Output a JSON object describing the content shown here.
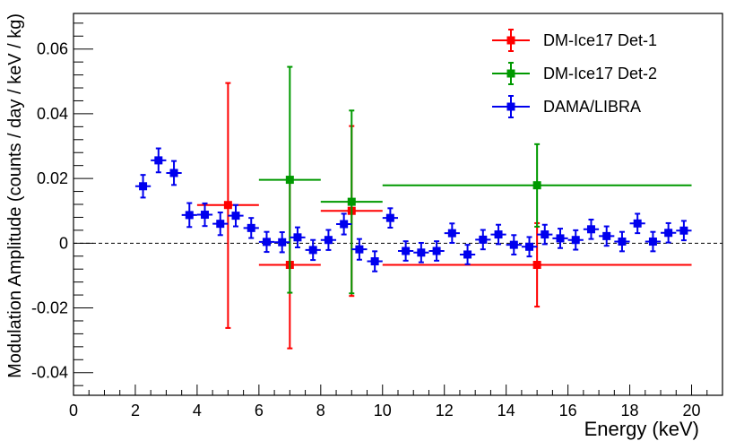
{
  "chart_data": {
    "type": "scatter",
    "xlabel": "Energy (keV)",
    "ylabel": "Modulation Amplitude (counts / day / keV / kg)",
    "xlim": [
      0,
      21
    ],
    "ylim": [
      -0.047,
      0.071
    ],
    "xticks": [
      0,
      2,
      4,
      6,
      8,
      10,
      12,
      14,
      16,
      18,
      20
    ],
    "yticks": [
      -0.04,
      -0.02,
      0,
      0.02,
      0.04,
      0.06
    ],
    "xtick_labels": [
      "0",
      "2",
      "4",
      "6",
      "8",
      "10",
      "12",
      "14",
      "16",
      "18",
      "20"
    ],
    "ytick_labels": [
      "-0.04",
      "-0.02",
      "0",
      "0.02",
      "0.04",
      "0.06"
    ],
    "reference_line": {
      "y": 0,
      "style": "dashed"
    },
    "legend_position": "top-right",
    "series": [
      {
        "name": "DM-Ice17 Det-1",
        "color": "#ff0000",
        "points": [
          {
            "x": 5.0,
            "y": 0.0118,
            "xlo": 4.0,
            "xhi": 6.0,
            "ylo": -0.0262,
            "yhi": 0.0495
          },
          {
            "x": 7.0,
            "y": -0.0067,
            "xlo": 6.0,
            "xhi": 8.0,
            "ylo": -0.0325,
            "yhi": 0.0191
          },
          {
            "x": 9.0,
            "y": 0.01,
            "xlo": 8.0,
            "xhi": 10.0,
            "ylo": -0.0163,
            "yhi": 0.0362
          },
          {
            "x": 15.0,
            "y": -0.0067,
            "xlo": 10.0,
            "xhi": 20.0,
            "ylo": -0.0196,
            "yhi": 0.0062
          }
        ]
      },
      {
        "name": "DM-Ice17 Det-2",
        "color": "#009900",
        "points": [
          {
            "x": 7.0,
            "y": 0.0196,
            "xlo": 6.0,
            "xhi": 8.0,
            "ylo": -0.0153,
            "yhi": 0.0545
          },
          {
            "x": 9.0,
            "y": 0.0128,
            "xlo": 8.0,
            "xhi": 10.0,
            "ylo": -0.0155,
            "yhi": 0.041
          },
          {
            "x": 15.0,
            "y": 0.0179,
            "xlo": 10.0,
            "xhi": 20.0,
            "ylo": 0.0051,
            "yhi": 0.0306
          }
        ]
      },
      {
        "name": "DAMA/LIBRA",
        "color": "#0000ee",
        "points": [
          {
            "x": 2.25,
            "y": 0.0176,
            "xlo": 2.0,
            "xhi": 2.5,
            "ylo": 0.0141,
            "yhi": 0.0211
          },
          {
            "x": 2.75,
            "y": 0.0256,
            "xlo": 2.5,
            "xhi": 3.0,
            "ylo": 0.0219,
            "yhi": 0.0293
          },
          {
            "x": 3.25,
            "y": 0.0217,
            "xlo": 3.0,
            "xhi": 3.5,
            "ylo": 0.018,
            "yhi": 0.0254
          },
          {
            "x": 3.75,
            "y": 0.0087,
            "xlo": 3.5,
            "xhi": 4.0,
            "ylo": 0.005,
            "yhi": 0.0124
          },
          {
            "x": 4.25,
            "y": 0.0088,
            "xlo": 4.0,
            "xhi": 4.5,
            "ylo": 0.0053,
            "yhi": 0.0123
          },
          {
            "x": 4.75,
            "y": 0.006,
            "xlo": 4.5,
            "xhi": 5.0,
            "ylo": 0.0025,
            "yhi": 0.0095
          },
          {
            "x": 5.25,
            "y": 0.0085,
            "xlo": 5.0,
            "xhi": 5.5,
            "ylo": 0.0052,
            "yhi": 0.0118
          },
          {
            "x": 5.75,
            "y": 0.0047,
            "xlo": 5.5,
            "xhi": 6.0,
            "ylo": 0.0016,
            "yhi": 0.0078
          },
          {
            "x": 6.25,
            "y": 0.0004,
            "xlo": 6.0,
            "xhi": 6.5,
            "ylo": -0.0027,
            "yhi": 0.0035
          },
          {
            "x": 6.75,
            "y": 0.0003,
            "xlo": 6.5,
            "xhi": 7.0,
            "ylo": -0.0028,
            "yhi": 0.0034
          },
          {
            "x": 7.25,
            "y": 0.0018,
            "xlo": 7.0,
            "xhi": 7.5,
            "ylo": -0.0013,
            "yhi": 0.0049
          },
          {
            "x": 7.75,
            "y": -0.0021,
            "xlo": 7.5,
            "xhi": 8.0,
            "ylo": -0.0052,
            "yhi": 0.001
          },
          {
            "x": 8.25,
            "y": 0.001,
            "xlo": 8.0,
            "xhi": 8.5,
            "ylo": -0.0021,
            "yhi": 0.0041
          },
          {
            "x": 8.75,
            "y": 0.0059,
            "xlo": 8.5,
            "xhi": 9.0,
            "ylo": 0.0027,
            "yhi": 0.0091
          },
          {
            "x": 9.25,
            "y": -0.0019,
            "xlo": 9.0,
            "xhi": 9.5,
            "ylo": -0.0051,
            "yhi": 0.0013
          },
          {
            "x": 9.75,
            "y": -0.0056,
            "xlo": 9.5,
            "xhi": 10.0,
            "ylo": -0.0087,
            "yhi": -0.0025
          },
          {
            "x": 10.25,
            "y": 0.0078,
            "xlo": 10.0,
            "xhi": 10.5,
            "ylo": 0.0048,
            "yhi": 0.0108
          },
          {
            "x": 10.75,
            "y": -0.0024,
            "xlo": 10.5,
            "xhi": 11.0,
            "ylo": -0.0054,
            "yhi": 0.0006
          },
          {
            "x": 11.25,
            "y": -0.0029,
            "xlo": 11.0,
            "xhi": 11.5,
            "ylo": -0.0059,
            "yhi": 0.0001
          },
          {
            "x": 11.75,
            "y": -0.0024,
            "xlo": 11.5,
            "xhi": 12.0,
            "ylo": -0.0054,
            "yhi": 0.0006
          },
          {
            "x": 12.25,
            "y": 0.0031,
            "xlo": 12.0,
            "xhi": 12.5,
            "ylo": 0.0001,
            "yhi": 0.0061
          },
          {
            "x": 12.75,
            "y": -0.0035,
            "xlo": 12.5,
            "xhi": 13.0,
            "ylo": -0.0065,
            "yhi": -0.0005
          },
          {
            "x": 13.25,
            "y": 0.0011,
            "xlo": 13.0,
            "xhi": 13.5,
            "ylo": -0.0019,
            "yhi": 0.0041
          },
          {
            "x": 13.75,
            "y": 0.0027,
            "xlo": 13.5,
            "xhi": 14.0,
            "ylo": -0.0003,
            "yhi": 0.0057
          },
          {
            "x": 14.25,
            "y": -0.0005,
            "xlo": 14.0,
            "xhi": 14.5,
            "ylo": -0.0035,
            "yhi": 0.0025
          },
          {
            "x": 14.75,
            "y": -0.0011,
            "xlo": 14.5,
            "xhi": 15.0,
            "ylo": -0.0041,
            "yhi": 0.0019
          },
          {
            "x": 15.25,
            "y": 0.0027,
            "xlo": 15.0,
            "xhi": 15.5,
            "ylo": -0.0003,
            "yhi": 0.0057
          },
          {
            "x": 15.75,
            "y": 0.0015,
            "xlo": 15.5,
            "xhi": 16.0,
            "ylo": -0.0015,
            "yhi": 0.0045
          },
          {
            "x": 16.25,
            "y": 0.001,
            "xlo": 16.0,
            "xhi": 16.5,
            "ylo": -0.002,
            "yhi": 0.004
          },
          {
            "x": 16.75,
            "y": 0.0043,
            "xlo": 16.5,
            "xhi": 17.0,
            "ylo": 0.0013,
            "yhi": 0.0073
          },
          {
            "x": 17.25,
            "y": 0.0022,
            "xlo": 17.0,
            "xhi": 17.5,
            "ylo": -0.0008,
            "yhi": 0.0052
          },
          {
            "x": 17.75,
            "y": 0.0005,
            "xlo": 17.5,
            "xhi": 18.0,
            "ylo": -0.0025,
            "yhi": 0.0035
          },
          {
            "x": 18.25,
            "y": 0.0061,
            "xlo": 18.0,
            "xhi": 18.5,
            "ylo": 0.0031,
            "yhi": 0.0091
          },
          {
            "x": 18.75,
            "y": 0.0005,
            "xlo": 18.5,
            "xhi": 19.0,
            "ylo": -0.0025,
            "yhi": 0.0035
          },
          {
            "x": 19.25,
            "y": 0.0032,
            "xlo": 19.0,
            "xhi": 19.5,
            "ylo": 0.0002,
            "yhi": 0.0062
          },
          {
            "x": 19.75,
            "y": 0.0039,
            "xlo": 19.5,
            "xhi": 20.0,
            "ylo": 0.0009,
            "yhi": 0.0069
          }
        ]
      }
    ]
  }
}
